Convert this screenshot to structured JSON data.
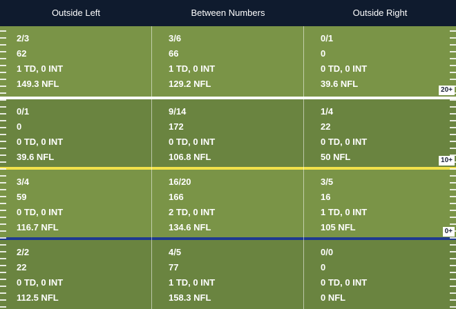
{
  "header": {
    "columns": [
      "Outside Left",
      "Between Numbers",
      "Outside Right"
    ]
  },
  "rows": [
    {
      "marker": "20+",
      "cells": [
        {
          "comp": "2/3",
          "yards": "62",
          "td_int": "1 TD, 0 INT",
          "rating": "149.3 NFL"
        },
        {
          "comp": "3/6",
          "yards": "66",
          "td_int": "1 TD, 0 INT",
          "rating": "129.2 NFL"
        },
        {
          "comp": "0/1",
          "yards": "0",
          "td_int": "0 TD, 0 INT",
          "rating": "39.6 NFL"
        }
      ]
    },
    {
      "marker": "10+",
      "cells": [
        {
          "comp": "0/1",
          "yards": "0",
          "td_int": "0 TD, 0 INT",
          "rating": "39.6 NFL"
        },
        {
          "comp": "9/14",
          "yards": "172",
          "td_int": "0 TD, 0 INT",
          "rating": "106.8 NFL"
        },
        {
          "comp": "1/4",
          "yards": "22",
          "td_int": "0 TD, 0 INT",
          "rating": "50 NFL"
        }
      ]
    },
    {
      "marker": "0+",
      "cells": [
        {
          "comp": "3/4",
          "yards": "59",
          "td_int": "0 TD, 0 INT",
          "rating": "116.7 NFL"
        },
        {
          "comp": "16/20",
          "yards": "166",
          "td_int": "2 TD, 0 INT",
          "rating": "134.6 NFL"
        },
        {
          "comp": "3/5",
          "yards": "16",
          "td_int": "1 TD, 0 INT",
          "rating": "105 NFL"
        }
      ]
    },
    {
      "marker": "",
      "cells": [
        {
          "comp": "2/2",
          "yards": "22",
          "td_int": "0 TD, 0 INT",
          "rating": "112.5 NFL"
        },
        {
          "comp": "4/5",
          "yards": "77",
          "td_int": "1 TD, 0 INT",
          "rating": "158.3 NFL"
        },
        {
          "comp": "0/0",
          "yards": "0",
          "td_int": "0 TD, 0 INT",
          "rating": "0 NFL"
        }
      ]
    }
  ],
  "colors": {
    "header_bg": "#0f1b2e",
    "field_light": "#7a9447",
    "field_dark": "#6a8440",
    "line_white": "#ffffff",
    "line_yellow": "#f2e24a",
    "line_blue": "#1f3a8f"
  }
}
